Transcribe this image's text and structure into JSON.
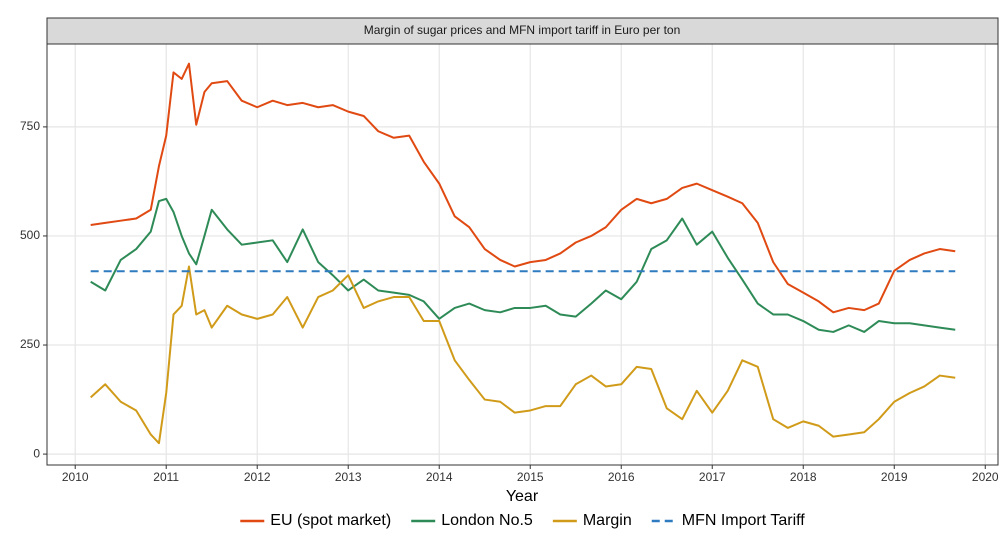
{
  "chart_data": {
    "type": "line",
    "title": "Margin of sugar prices and MFN import tariff in Euro per ton",
    "x_label": "Year",
    "x": [
      2010.17,
      2010.33,
      2010.5,
      2010.67,
      2010.83,
      2010.92,
      2011.0,
      2011.08,
      2011.17,
      2011.25,
      2011.33,
      2011.42,
      2011.5,
      2011.67,
      2011.83,
      2012.0,
      2012.17,
      2012.33,
      2012.5,
      2012.67,
      2012.83,
      2013.0,
      2013.17,
      2013.33,
      2013.5,
      2013.67,
      2013.83,
      2014.0,
      2014.17,
      2014.33,
      2014.5,
      2014.67,
      2014.83,
      2015.0,
      2015.17,
      2015.33,
      2015.5,
      2015.67,
      2015.83,
      2016.0,
      2016.17,
      2016.33,
      2016.5,
      2016.67,
      2016.83,
      2017.0,
      2017.17,
      2017.33,
      2017.5,
      2017.67,
      2017.83,
      2018.0,
      2018.17,
      2018.33,
      2018.5,
      2018.67,
      2018.83,
      2019.0,
      2019.17,
      2019.33,
      2019.5,
      2019.67
    ],
    "series": [
      {
        "name": "EU (spot market)",
        "color": "#e04a12",
        "values": [
          525,
          530,
          535,
          540,
          560,
          660,
          730,
          875,
          860,
          895,
          755,
          830,
          850,
          855,
          810,
          795,
          810,
          800,
          805,
          795,
          800,
          785,
          775,
          740,
          725,
          730,
          670,
          620,
          545,
          520,
          470,
          445,
          430,
          440,
          445,
          460,
          485,
          500,
          520,
          560,
          585,
          575,
          585,
          610,
          620,
          605,
          590,
          575,
          530,
          440,
          390,
          370,
          350,
          325,
          335,
          330,
          345,
          420,
          445,
          460,
          470,
          465
        ]
      },
      {
        "name": "London No.5",
        "color": "#2e8b57",
        "values": [
          395,
          375,
          445,
          470,
          510,
          580,
          585,
          555,
          500,
          460,
          435,
          500,
          560,
          515,
          480,
          485,
          490,
          440,
          515,
          440,
          410,
          375,
          400,
          375,
          370,
          365,
          350,
          310,
          335,
          345,
          330,
          325,
          335,
          335,
          340,
          320,
          315,
          345,
          375,
          355,
          395,
          470,
          490,
          540,
          480,
          510,
          450,
          400,
          345,
          320,
          320,
          305,
          285,
          280,
          295,
          280,
          305,
          300,
          300,
          295,
          290,
          285
        ]
      },
      {
        "name": "Margin",
        "color": "#d19b1a",
        "values": [
          130,
          160,
          120,
          100,
          45,
          25,
          140,
          320,
          340,
          430,
          320,
          330,
          290,
          340,
          320,
          310,
          320,
          360,
          290,
          360,
          375,
          410,
          335,
          350,
          360,
          360,
          305,
          305,
          215,
          170,
          125,
          120,
          95,
          100,
          110,
          110,
          160,
          180,
          155,
          160,
          200,
          195,
          105,
          80,
          145,
          95,
          145,
          215,
          200,
          80,
          60,
          75,
          65,
          40,
          45,
          50,
          80,
          120,
          140,
          155,
          180,
          175
        ]
      },
      {
        "name": "MFN Import Tariff",
        "color": "#2f7bbf",
        "dashed": true,
        "values": [
          419,
          419,
          419,
          419,
          419,
          419,
          419,
          419,
          419,
          419,
          419,
          419,
          419,
          419,
          419,
          419,
          419,
          419,
          419,
          419,
          419,
          419,
          419,
          419,
          419,
          419,
          419,
          419,
          419,
          419,
          419,
          419,
          419,
          419,
          419,
          419,
          419,
          419,
          419,
          419,
          419,
          419,
          419,
          419,
          419,
          419,
          419,
          419,
          419,
          419,
          419,
          419,
          419,
          419,
          419,
          419,
          419,
          419,
          419,
          419,
          419,
          419
        ]
      }
    ],
    "xlim": [
      2009.69,
      2020.14
    ],
    "xticks": [
      2010,
      2011,
      2012,
      2013,
      2014,
      2015,
      2016,
      2017,
      2018,
      2019,
      2020
    ],
    "ylim": [
      -25,
      940
    ],
    "yticks": [
      0,
      250,
      500,
      750
    ],
    "grid": true,
    "legend": "bottom"
  }
}
